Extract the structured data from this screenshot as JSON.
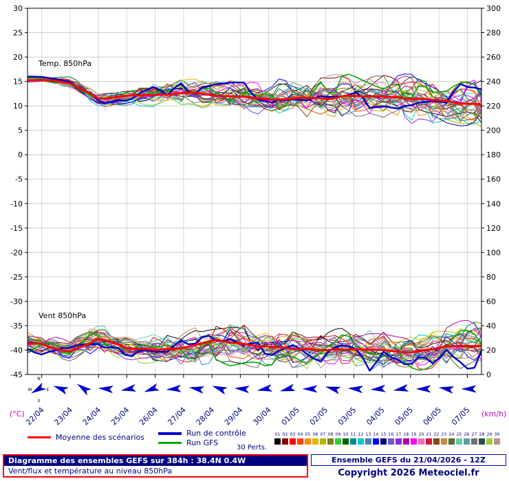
{
  "chart_data": {
    "type": "line",
    "title": "Diagramme des ensembles GEFS sur 384h : 38.4N 0.4W",
    "subtitle": "Vent/flux et température au niveau 850hPa",
    "temp_label": "Temp. 850hPa",
    "wind_label": "Vent 850hPa",
    "left_axis": {
      "label": "(°C)",
      "min": -45,
      "max": 30,
      "step": 5
    },
    "right_axis": {
      "label": "(km/h)",
      "min": 0,
      "max": 300,
      "step": 20
    },
    "x_dates": [
      "22/04",
      "23/04",
      "24/04",
      "25/04",
      "26/04",
      "27/04",
      "28/04",
      "29/04",
      "30/04",
      "01/05",
      "02/05",
      "03/05",
      "04/05",
      "05/05",
      "06/05",
      "07/05"
    ],
    "temp_mean": [
      15.5,
      14.8,
      11.5,
      12.0,
      12.5,
      12.8,
      12.3,
      12.0,
      11.5,
      11.8,
      11.5,
      12.0,
      12.0,
      11.5,
      11.0,
      10.5
    ],
    "temp_spread": [
      0.4,
      0.8,
      1.2,
      1.4,
      1.6,
      1.8,
      2.0,
      2.2,
      2.5,
      2.8,
      3.0,
      3.2,
      3.3,
      3.5,
      3.6,
      3.8
    ],
    "wind_mean_kmh": [
      24,
      20,
      30,
      22,
      20,
      21,
      27,
      26,
      22,
      20,
      19,
      21,
      19,
      18,
      21,
      22
    ],
    "wind_spread_kmh": [
      6,
      6,
      8,
      8,
      8,
      10,
      12,
      13,
      12,
      11,
      11,
      12,
      12,
      12,
      13,
      14
    ],
    "wind_dirs_deg": [
      150,
      200,
      215,
      185,
      170,
      160,
      175,
      190,
      200,
      185,
      170,
      165,
      180,
      195,
      185,
      175,
      170,
      180,
      190,
      180
    ],
    "n_members": 30,
    "member_colors": [
      "#000000",
      "#8b0000",
      "#ff0000",
      "#ff4500",
      "#ff8c00",
      "#e6b800",
      "#b8b800",
      "#808000",
      "#32cd32",
      "#006400",
      "#008b8b",
      "#00ced1",
      "#4682b4",
      "#0000ff",
      "#000080",
      "#6a5acd",
      "#8a2be2",
      "#b000b0",
      "#ff00ff",
      "#ff69b4",
      "#dc143c",
      "#8b4513",
      "#cd853f",
      "#556b2f",
      "#66cdaa",
      "#5f9ea0",
      "#707070",
      "#2f4f4f",
      "#9acd32",
      "#bc8f8f"
    ],
    "mean_color": "#ff0000",
    "control_color": "#0000cc",
    "gfs_color": "#00aa00",
    "barb_color": "#0000cc"
  },
  "compass": {
    "n": "N",
    "e": "E",
    "s": "S",
    "w": "W"
  },
  "legend": {
    "mean_label": "Moyenne des scénarios",
    "control_label": "Run de contrôle",
    "gfs_label": "Run GFS",
    "perts_label": "30 Perts.",
    "pert_numbers": [
      "01",
      "02",
      "03",
      "04",
      "05",
      "06",
      "07",
      "08",
      "09",
      "10",
      "11",
      "12",
      "13",
      "14",
      "15",
      "16",
      "17",
      "18",
      "19",
      "20",
      "21",
      "22",
      "23",
      "24",
      "25",
      "26",
      "27",
      "28",
      "29",
      "30"
    ]
  },
  "footer": {
    "left_line1": "Diagramme des ensembles GEFS sur 384h : 38.4N 0.4W",
    "left_line2": "Vent/flux et température au niveau 850hPa",
    "right_line1": "Ensemble GEFS du 21/04/2026 - 12Z",
    "right_line2": "Copyright 2026 Meteociel.fr"
  }
}
